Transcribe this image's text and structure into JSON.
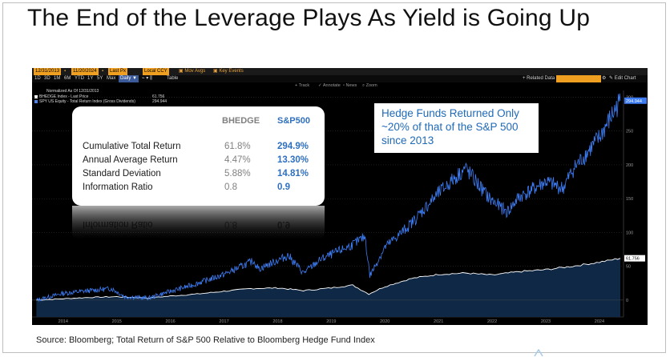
{
  "slide": {
    "title": "The End of the Leverage Plays As Yield is Going Up",
    "source": "Source: Bloomberg; Total Return of S&P 500 Relative to Bloomberg Hedge Fund Index"
  },
  "terminal": {
    "start_date": "12/31/2013",
    "end_date": "11/20/2024",
    "field": "Last Px",
    "currency": "Local CCY",
    "mov_avgs": "Mov Avgs",
    "key_events": "Key Events",
    "periods": [
      "1D",
      "3D",
      "1M",
      "6M",
      "YTD",
      "1Y",
      "5Y",
      "Max"
    ],
    "frequency": "Daily",
    "table_label": "Table",
    "tools": [
      "Track",
      "Annotate",
      "News",
      "Zoom"
    ],
    "related_data": "+ Related Data",
    "edit_chart": "Edit Chart",
    "normalized_note": "Normalized As Of 12/31/2013",
    "legend": [
      {
        "label": "BHEDGE Index - Last Price",
        "value": "61.756",
        "color": "#ffffff"
      },
      {
        "label": "SPY US Equity - Total Return Index (Gross Dividends)",
        "value": "294.944",
        "color": "#4a86f0"
      }
    ],
    "last_value_tags": {
      "spy": "294.944",
      "bhedge": "61.756"
    }
  },
  "stats_table": {
    "col1": "BHEDGE",
    "col2": "S&P500",
    "rows": [
      {
        "label": "Cumulative Total Return",
        "bhedge": "61.8%",
        "sp500": "294.9%"
      },
      {
        "label": "Annual Average Return",
        "bhedge": "4.47%",
        "sp500": "13.30%"
      },
      {
        "label": "Standard Deviation",
        "bhedge": "5.88%",
        "sp500": "14.81%"
      },
      {
        "label": "Information Ratio",
        "bhedge": "0.8",
        "sp500": "0.9"
      }
    ]
  },
  "callout": {
    "line1": "Hedge Funds Returned Only",
    "line2": "~20% of that of the S&P 500",
    "line3": "since 2013"
  },
  "chart_data": {
    "type": "line",
    "title": "Normalized As Of 12/31/2013",
    "x_range": [
      2013.92,
      2024.95
    ],
    "ylim": [
      -25,
      310
    ],
    "y_ticks": [
      0,
      50,
      100,
      150,
      200,
      250,
      300
    ],
    "x_ticks": [
      "2014",
      "2015",
      "2016",
      "2017",
      "2018",
      "2019",
      "2020",
      "2021",
      "2022",
      "2023",
      "2024"
    ],
    "series": [
      {
        "name": "SPY US Equity - Total Return Index (Gross Dividends)",
        "color": "#3d7cf2",
        "x": [
          2014.0,
          2014.5,
          2015.0,
          2015.4,
          2015.65,
          2016.1,
          2016.5,
          2016.9,
          2017.5,
          2018.05,
          2018.15,
          2018.7,
          2018.98,
          2019.3,
          2019.9,
          2020.13,
          2020.22,
          2020.5,
          2020.95,
          2021.5,
          2022.0,
          2022.45,
          2022.78,
          2023.0,
          2023.5,
          2023.82,
          2024.0,
          2024.5,
          2024.89
        ],
        "values": [
          0,
          10,
          14,
          17,
          5,
          3,
          13,
          22,
          38,
          58,
          46,
          66,
          40,
          60,
          82,
          94,
          36,
          78,
          110,
          158,
          195,
          150,
          130,
          152,
          175,
          165,
          192,
          240,
          294.9
        ]
      },
      {
        "name": "BHEDGE Index - Last Price",
        "color": "#ffffff",
        "x": [
          2014.0,
          2014.5,
          2015.0,
          2015.5,
          2016.1,
          2016.5,
          2017.0,
          2017.5,
          2018.0,
          2018.5,
          2018.98,
          2019.5,
          2019.9,
          2020.2,
          2020.5,
          2021.0,
          2021.5,
          2022.0,
          2022.5,
          2023.0,
          2023.5,
          2024.0,
          2024.5,
          2024.89
        ],
        "values": [
          0,
          2,
          4,
          5,
          3,
          6,
          9,
          13,
          17,
          18,
          14,
          18,
          22,
          9,
          20,
          32,
          38,
          40,
          37,
          42,
          45,
          50,
          56,
          61.8
        ]
      }
    ]
  }
}
